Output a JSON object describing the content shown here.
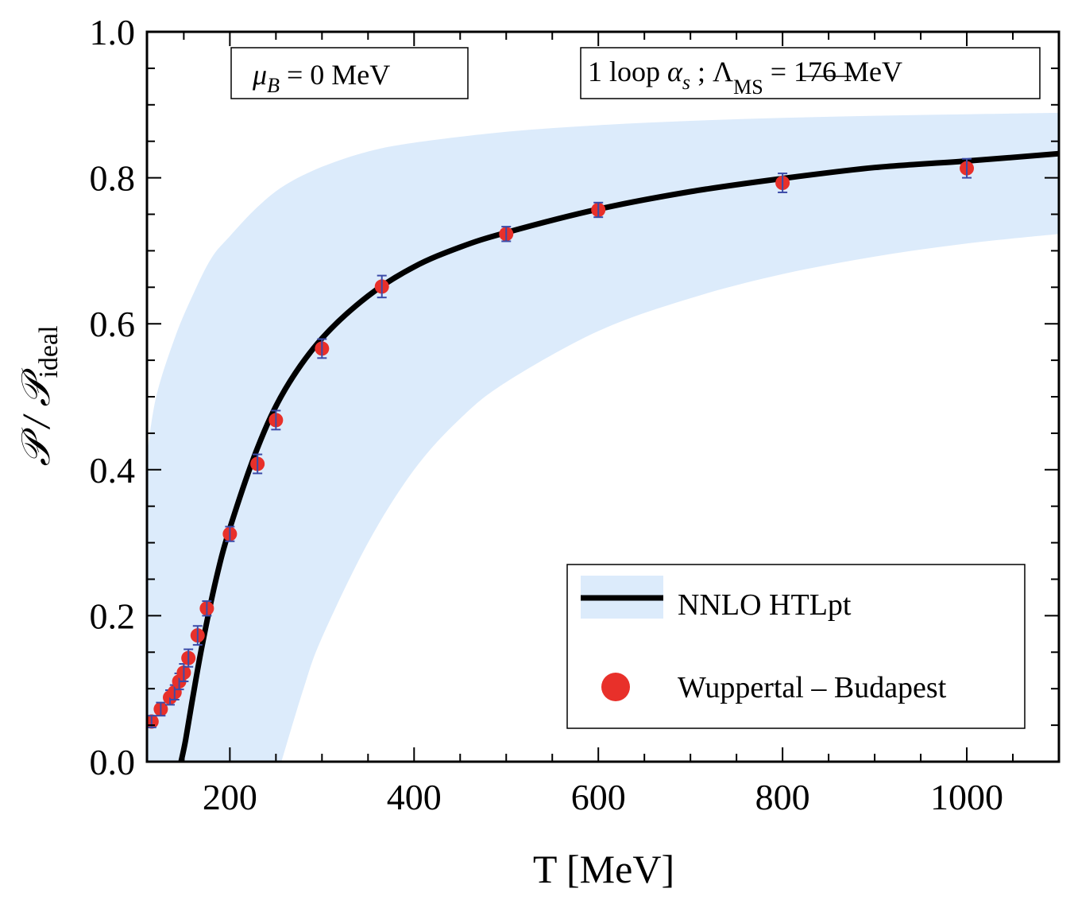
{
  "chart_data": {
    "type": "line",
    "xlabel": "T [MeV]",
    "ylabel": {
      "main": "𝒫 / 𝒫",
      "sub": "ideal"
    },
    "xlim": [
      110,
      1100
    ],
    "ylim": [
      0.0,
      1.0
    ],
    "x_ticks": [
      {
        "value": 200,
        "label": "200"
      },
      {
        "value": 400,
        "label": "400"
      },
      {
        "value": 600,
        "label": "600"
      },
      {
        "value": 800,
        "label": "800"
      },
      {
        "value": 1000,
        "label": "1000"
      }
    ],
    "y_ticks": [
      {
        "value": 0.0,
        "label": "0.0"
      },
      {
        "value": 0.2,
        "label": "0.2"
      },
      {
        "value": 0.4,
        "label": "0.4"
      },
      {
        "value": 0.6,
        "label": "0.6"
      },
      {
        "value": 0.8,
        "label": "0.8"
      },
      {
        "value": 1.0,
        "label": "1.0"
      }
    ],
    "grid": false,
    "legend_position": "bottom-right",
    "annotations": {
      "left": {
        "mu": "μ",
        "mu_sub": "B",
        "rest": " = 0  MeV"
      },
      "right": {
        "prefix": "1  loop  ",
        "alpha": "α",
        "alpha_sub": "s",
        "mid": " ;  Λ",
        "lambda_sub": "MS",
        "rest": " = 176  MeV"
      }
    },
    "colors": {
      "band": "#dcebfb",
      "line": "#000000",
      "points": "#e8302a",
      "errorbars": "#3b4ba8"
    },
    "series": [
      {
        "name": "NNLO  HTLpt",
        "type": "line_with_band",
        "x": [
          147,
          152,
          160,
          170,
          185,
          200,
          230,
          260,
          300,
          350,
          400,
          450,
          500,
          600,
          700,
          800,
          900,
          1000,
          1100
        ],
        "y": [
          0.0,
          0.03,
          0.09,
          0.16,
          0.25,
          0.32,
          0.43,
          0.51,
          0.58,
          0.638,
          0.678,
          0.705,
          0.725,
          0.757,
          0.781,
          0.799,
          0.814,
          0.823,
          0.833
        ],
        "band_x": [
          110,
          120,
          140,
          160,
          180,
          200,
          230,
          260,
          300,
          350,
          400,
          500,
          600,
          700,
          800,
          900,
          1000,
          1100
        ],
        "band_upper": [
          0.42,
          0.5,
          0.58,
          0.64,
          0.69,
          0.72,
          0.76,
          0.79,
          0.815,
          0.836,
          0.848,
          0.863,
          0.872,
          0.878,
          0.882,
          0.885,
          0.887,
          0.889
        ],
        "band_lower_x": [
          256,
          280,
          300,
          350,
          400,
          450,
          500,
          600,
          700,
          800,
          900,
          1000,
          1100
        ],
        "band_lower": [
          0.0,
          0.1,
          0.17,
          0.3,
          0.4,
          0.47,
          0.52,
          0.59,
          0.635,
          0.668,
          0.692,
          0.71,
          0.723
        ]
      },
      {
        "name": "Wuppertal – Budapest",
        "type": "scatter",
        "x": [
          115,
          125,
          135,
          140,
          145,
          150,
          155,
          165,
          175,
          200,
          230,
          250,
          300,
          365,
          500,
          600,
          800,
          1000
        ],
        "y": [
          0.055,
          0.072,
          0.088,
          0.095,
          0.11,
          0.122,
          0.142,
          0.173,
          0.21,
          0.312,
          0.408,
          0.468,
          0.566,
          0.651,
          0.723,
          0.756,
          0.793,
          0.813
        ],
        "err": [
          0.008,
          0.009,
          0.01,
          0.01,
          0.011,
          0.012,
          0.012,
          0.013,
          0.01,
          0.01,
          0.013,
          0.013,
          0.013,
          0.015,
          0.01,
          0.01,
          0.013,
          0.013
        ]
      }
    ]
  }
}
